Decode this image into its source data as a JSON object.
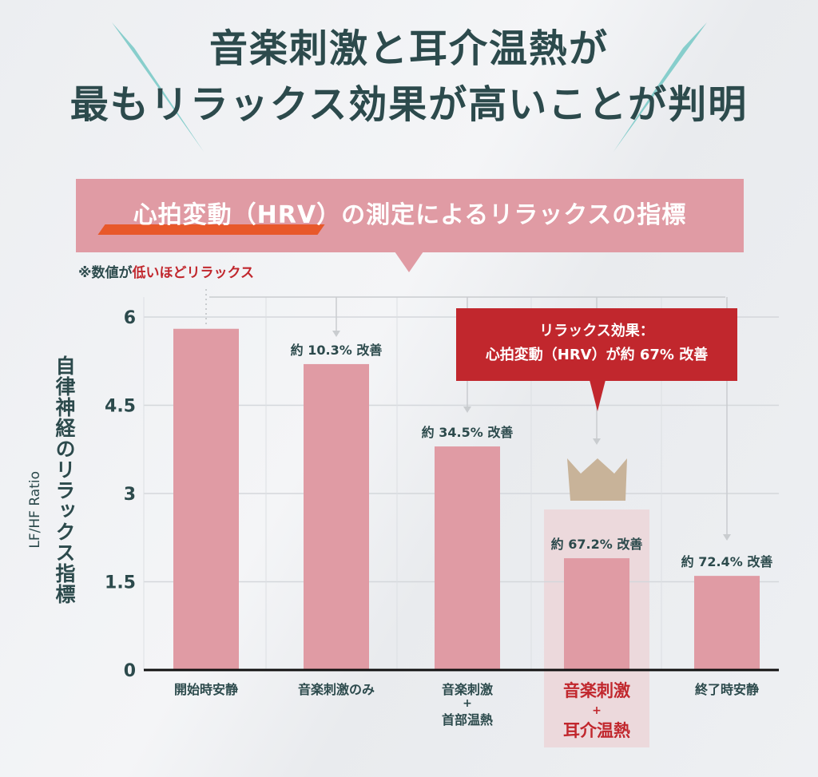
{
  "header": {
    "title_line1": "音楽刺激と耳介温熱が",
    "title_line2": "最もリラックス効果が高いことが判明"
  },
  "banner": {
    "text": "心拍変動（HRV）の測定によるリラックスの指標"
  },
  "note": {
    "prefix": "※数値が",
    "highlight": "低いほどリラックス"
  },
  "callout": {
    "line1": "リラックス効果：",
    "line2": "心拍変動（HRV）が約 67% 改善"
  },
  "colors": {
    "bar": "#e09ba4",
    "highlight_bg": "#ecd9dc",
    "accent_red": "#c1272d",
    "crown": "#c8b399",
    "text": "#2c4a4c",
    "spike": "#7ccac8"
  },
  "chart_data": {
    "type": "bar",
    "title": "心拍変動（HRV）の測定によるリラックスの指標",
    "ylabel": "自律神経のリラックス指標",
    "ylabel_sub": "LF/HF Ratio",
    "ylim": [
      0,
      6
    ],
    "yticks": [
      {
        "v": 0,
        "label": "0"
      },
      {
        "v": 1.5,
        "label": "1.5"
      },
      {
        "v": 3,
        "label": "3"
      },
      {
        "v": 4.5,
        "label": "4.5"
      },
      {
        "v": 6,
        "label": "6"
      }
    ],
    "grid": true,
    "categories": [
      {
        "lines": [
          "開始時安静"
        ],
        "highlight": false
      },
      {
        "lines": [
          "音楽刺激のみ"
        ],
        "highlight": false
      },
      {
        "lines": [
          "音楽刺激",
          "+",
          "首部温熱"
        ],
        "highlight": false
      },
      {
        "lines": [
          "音楽刺激",
          "+",
          "耳介温熱"
        ],
        "highlight": true
      },
      {
        "lines": [
          "終了時安静"
        ],
        "highlight": false
      }
    ],
    "values": [
      5.8,
      5.2,
      3.8,
      1.9,
      1.6
    ],
    "annotations": [
      "",
      "約 10.3% 改善",
      "約 34.5% 改善",
      "約 67.2% 改善",
      "約 72.4% 改善"
    ]
  }
}
